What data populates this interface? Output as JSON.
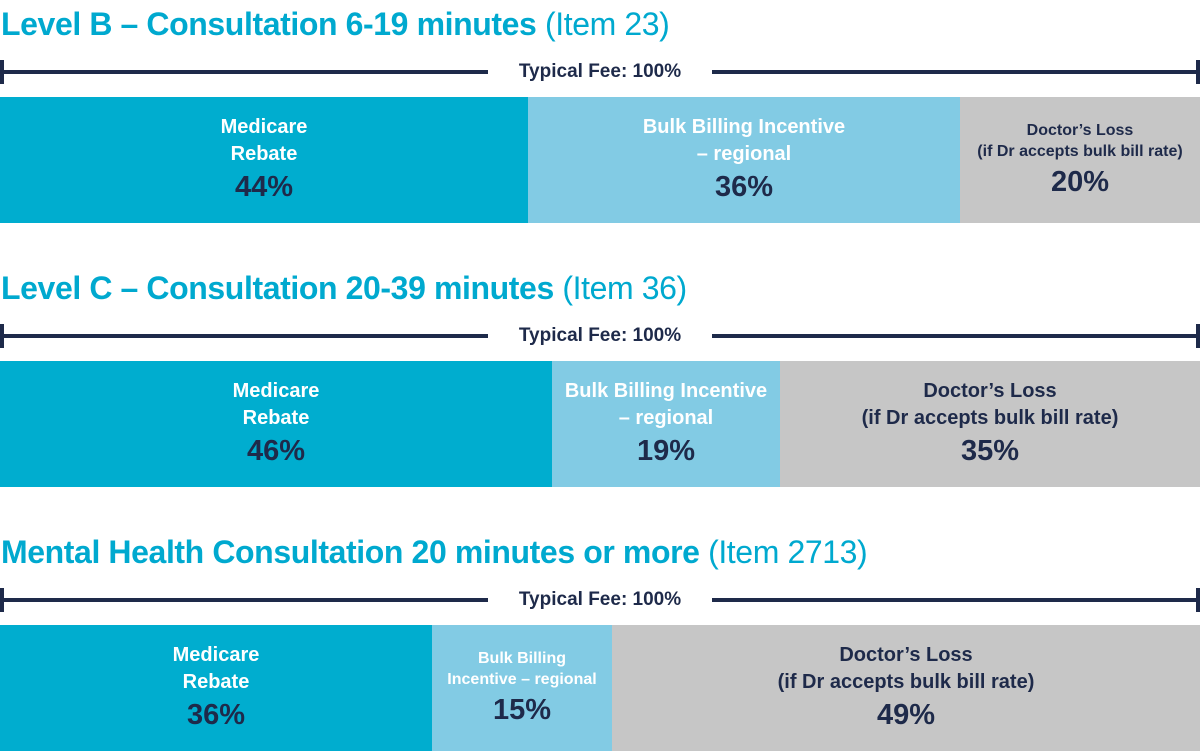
{
  "colors": {
    "medicare": "#00adcf",
    "incentive": "#82cbe4",
    "loss": "#c6c6c6",
    "title": "#00a9cf",
    "dark": "#1e2a4a"
  },
  "chart_data": [
    {
      "type": "bar",
      "orientation": "horizontal-stacked",
      "title": "Level B – Consultation 6-19 minutes",
      "title_ref": "(Item 23)",
      "total_label": "Typical Fee: 100%",
      "categories": [
        "Medicare Rebate",
        "Bulk Billing Incentive – regional",
        "Doctor’s Loss (if Dr accepts bulk bill rate)"
      ],
      "segments": [
        {
          "key": "medicare",
          "label_lines": [
            "Medicare",
            "Rebate"
          ],
          "value": 44,
          "display": "44%",
          "label_size": 20
        },
        {
          "key": "incentive",
          "label_lines": [
            "Bulk Billing Incentive",
            "– regional"
          ],
          "value": 36,
          "display": "36%",
          "label_size": 20
        },
        {
          "key": "loss",
          "label_lines": [
            "Doctor’s Loss",
            "(if Dr accepts bulk bill rate)"
          ],
          "value": 20,
          "display": "20%",
          "label_size": 16
        }
      ],
      "xlim": [
        0,
        100
      ]
    },
    {
      "type": "bar",
      "orientation": "horizontal-stacked",
      "title": "Level C – Consultation 20-39 minutes",
      "title_ref": "(Item 36)",
      "total_label": "Typical Fee: 100%",
      "categories": [
        "Medicare Rebate",
        "Bulk Billing Incentive – regional",
        "Doctor’s Loss (if Dr accepts bulk bill rate)"
      ],
      "segments": [
        {
          "key": "medicare",
          "label_lines": [
            "Medicare",
            "Rebate"
          ],
          "value": 46,
          "display": "46%",
          "label_size": 20
        },
        {
          "key": "incentive",
          "label_lines": [
            "Bulk Billing Incentive",
            "– regional"
          ],
          "value": 19,
          "display": "19%",
          "label_size": 20
        },
        {
          "key": "loss",
          "label_lines": [
            "Doctor’s Loss",
            "(if Dr accepts bulk bill rate)"
          ],
          "value": 35,
          "display": "35%",
          "label_size": 20
        }
      ],
      "xlim": [
        0,
        100
      ]
    },
    {
      "type": "bar",
      "orientation": "horizontal-stacked",
      "title": "Mental Health Consultation 20 minutes or more",
      "title_ref": "(Item 2713)",
      "total_label": "Typical Fee: 100%",
      "categories": [
        "Medicare Rebate",
        "Bulk Billing Incentive – regional",
        "Doctor’s Loss (if Dr accepts bulk bill rate)"
      ],
      "segments": [
        {
          "key": "medicare",
          "label_lines": [
            "Medicare",
            "Rebate"
          ],
          "value": 36,
          "display": "36%",
          "label_size": 20
        },
        {
          "key": "incentive",
          "label_lines": [
            "Bulk Billing",
            "Incentive – regional"
          ],
          "value": 15,
          "display": "15%",
          "label_size": 16
        },
        {
          "key": "loss",
          "label_lines": [
            "Doctor’s Loss",
            "(if Dr accepts bulk bill rate)"
          ],
          "value": 49,
          "display": "49%",
          "label_size": 20
        }
      ],
      "xlim": [
        0,
        100
      ]
    }
  ]
}
